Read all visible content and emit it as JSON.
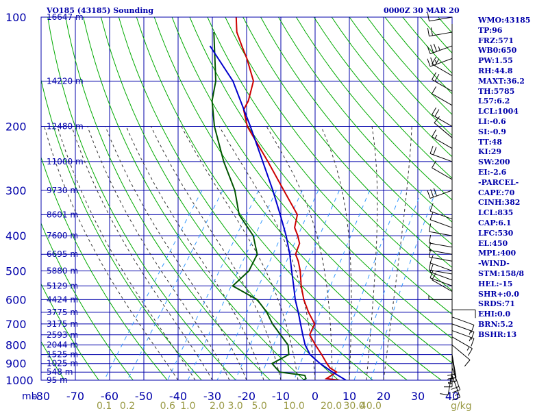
{
  "header": {
    "title": "VO185 (43185) Sounding",
    "datetime": "0000Z 30 MAR 20"
  },
  "indices": [
    "WMO:43185",
    "TP:96",
    "FRZ:571",
    "WB0:650",
    "PW:1.55",
    "RH:44.8",
    "MAXT:36.2",
    "TH:5785",
    "L57:6.2",
    "LCL:1004",
    "LI:-0.6",
    "SI:-0.9",
    "TT:48",
    "KI:29",
    "SW:200",
    "EI:-2.6",
    "-PARCEL-",
    "CAPE:70",
    "CINH:382",
    "LCL:835",
    "CAP:6.1",
    "LFC:530",
    "EL:450",
    "MPL:400",
    "-WIND-",
    "STM:158/8",
    "HEL:-15",
    "SHR+:0.0",
    "SRDS:71",
    "EHI:0.0",
    "BRN:5.2",
    "BSHR:13"
  ],
  "colors": {
    "axis": "#0000aa",
    "isotherm": "#0000aa",
    "dry_adiabat": "#00aa00",
    "moist_adiabat": "#333333",
    "mixing_ratio": "#3399ff",
    "temperature": "#cc0000",
    "dewpoint": "#005500",
    "parcel": "#0000cc",
    "wind": "#000000",
    "mixing_label": "#999944"
  },
  "chart_data": {
    "type": "skew-t",
    "title": "VO185 (43185) Sounding",
    "x_axis_unit": "°C",
    "y_axis_unit": "mb",
    "y_scale": "log",
    "ylim": [
      1000,
      100
    ],
    "xlim": [
      -80,
      40
    ],
    "pressure_ticks": [
      {
        "value": 100,
        "label": "100"
      },
      {
        "value": 200,
        "label": "200"
      },
      {
        "value": 300,
        "label": "300"
      },
      {
        "value": 400,
        "label": "400"
      },
      {
        "value": 500,
        "label": "500"
      },
      {
        "value": 600,
        "label": "600"
      },
      {
        "value": 700,
        "label": "700"
      },
      {
        "value": 800,
        "label": "800"
      },
      {
        "value": 900,
        "label": "900"
      },
      {
        "value": 1000,
        "label": "1000"
      }
    ],
    "temperature_ticks": [
      "-80",
      "-70",
      "-60",
      "-50",
      "-40",
      "-30",
      "-20",
      "-10",
      "0",
      "10",
      "20",
      "30",
      "40"
    ],
    "mixing_ratio_ticks": [
      {
        "value": 0.1,
        "label": "0.1"
      },
      {
        "value": 0.2,
        "label": "0.2"
      },
      {
        "value": 0.6,
        "label": "0.6"
      },
      {
        "value": 1.0,
        "label": "1.0"
      },
      {
        "value": 2.0,
        "label": "2.0"
      },
      {
        "value": 3.0,
        "label": "3.0"
      },
      {
        "value": 5.0,
        "label": "5.0"
      },
      {
        "value": 10.0,
        "label": "10.0"
      },
      {
        "value": 20.0,
        "label": "20.0"
      },
      {
        "value": 30.0,
        "label": "30.0"
      },
      {
        "value": 40.0,
        "label": "40.0"
      }
    ],
    "mixing_ratio_unit": "g/kg",
    "heights": [
      {
        "p": 100,
        "label": "16647 m"
      },
      {
        "p": 150,
        "label": "14220 m"
      },
      {
        "p": 200,
        "label": "12480 m"
      },
      {
        "p": 250,
        "label": "11000 m"
      },
      {
        "p": 300,
        "label": "9730 m"
      },
      {
        "p": 350,
        "label": "8601 m"
      },
      {
        "p": 400,
        "label": "7600 m"
      },
      {
        "p": 450,
        "label": "6695 m"
      },
      {
        "p": 500,
        "label": "5880 m"
      },
      {
        "p": 550,
        "label": "5129 m"
      },
      {
        "p": 600,
        "label": "4424 m"
      },
      {
        "p": 650,
        "label": "3775 m"
      },
      {
        "p": 700,
        "label": "3175 m"
      },
      {
        "p": 750,
        "label": "2593 m"
      },
      {
        "p": 800,
        "label": "2044 m"
      },
      {
        "p": 850,
        "label": "1525 m"
      },
      {
        "p": 900,
        "label": "1025 m"
      },
      {
        "p": 950,
        "label": "548 m"
      },
      {
        "p": 1000,
        "label": "95 m"
      }
    ],
    "series": [
      {
        "name": "temperature",
        "p": [
          1000,
          990,
          970,
          950,
          925,
          900,
          850,
          800,
          750,
          700,
          650,
          600,
          550,
          500,
          470,
          450,
          420,
          400,
          380,
          350,
          300,
          250,
          200,
          180,
          170,
          150,
          130,
          120,
          110,
          100
        ],
        "t": [
          27.1,
          23,
          23.8,
          24.6,
          21.8,
          20,
          16.6,
          12.8,
          9,
          8.2,
          4,
          0,
          -3.6,
          -7,
          -9.6,
          -11.8,
          -12.9,
          -15,
          -17.6,
          -19.5,
          -28.5,
          -39.1,
          -52.4,
          -56.9,
          -57.4,
          -60,
          -66.6,
          -70.7,
          -75,
          -78.3
        ]
      },
      {
        "name": "dewpoint",
        "p": [
          1000,
          990,
          970,
          950,
          925,
          900,
          850,
          800,
          700,
          650,
          600,
          550,
          500,
          450,
          400,
          350,
          300,
          250,
          200,
          170,
          150,
          110
        ],
        "t": [
          16.5,
          17,
          16,
          8,
          6,
          4,
          7,
          4.8,
          -4.1,
          -8.2,
          -13.6,
          -23.6,
          -22,
          -23,
          -28,
          -36.5,
          -42.8,
          -52,
          -62,
          -68,
          -71,
          -81.7
        ]
      },
      {
        "name": "parcel",
        "p": [
          1000,
          950,
          900,
          850,
          800,
          750,
          700,
          650,
          600,
          550,
          500,
          450,
          400,
          350,
          300,
          250,
          200,
          150,
          120
        ],
        "t": [
          29,
          23.4,
          18,
          13.2,
          9.8,
          7,
          4.1,
          1,
          -2.5,
          -5.8,
          -9.5,
          -13.5,
          -18.4,
          -24.5,
          -31.7,
          -40.6,
          -51.5,
          -66,
          -80
        ]
      }
    ],
    "wind": [
      {
        "p": 1000,
        "dir": 0,
        "spd": 0
      },
      {
        "p": 970,
        "dir": 160,
        "spd": 15
      },
      {
        "p": 950,
        "dir": 190,
        "spd": 10
      },
      {
        "p": 925,
        "dir": 160,
        "spd": 20
      },
      {
        "p": 900,
        "dir": 180,
        "spd": 15
      },
      {
        "p": 870,
        "dir": 170,
        "spd": 20
      },
      {
        "p": 850,
        "dir": 170,
        "spd": 20
      },
      {
        "p": 800,
        "dir": 130,
        "spd": 10
      },
      {
        "p": 760,
        "dir": 120,
        "spd": 15
      },
      {
        "p": 730,
        "dir": 110,
        "spd": 15
      },
      {
        "p": 700,
        "dir": 110,
        "spd": 15
      },
      {
        "p": 670,
        "dir": 110,
        "spd": 10
      },
      {
        "p": 640,
        "dir": 90,
        "spd": 10
      },
      {
        "p": 600,
        "dir": 270,
        "spd": 5
      },
      {
        "p": 570,
        "dir": 300,
        "spd": 10
      },
      {
        "p": 550,
        "dir": 290,
        "spd": 10
      },
      {
        "p": 530,
        "dir": 290,
        "spd": 10
      },
      {
        "p": 510,
        "dir": 280,
        "spd": 10
      },
      {
        "p": 500,
        "dir": 290,
        "spd": 10
      },
      {
        "p": 470,
        "dir": 280,
        "spd": 10
      },
      {
        "p": 450,
        "dir": 280,
        "spd": 10
      },
      {
        "p": 430,
        "dir": 280,
        "spd": 10
      },
      {
        "p": 400,
        "dir": 280,
        "spd": 10
      },
      {
        "p": 380,
        "dir": 290,
        "spd": 10
      },
      {
        "p": 360,
        "dir": 290,
        "spd": 10
      },
      {
        "p": 300,
        "dir": 250,
        "spd": 30
      },
      {
        "p": 280,
        "dir": 300,
        "spd": 10
      },
      {
        "p": 250,
        "dir": 290,
        "spd": 20
      },
      {
        "p": 230,
        "dir": 300,
        "spd": 15
      },
      {
        "p": 215,
        "dir": 310,
        "spd": 10
      },
      {
        "p": 200,
        "dir": 300,
        "spd": 20
      },
      {
        "p": 175,
        "dir": 300,
        "spd": 10
      },
      {
        "p": 160,
        "dir": 300,
        "spd": 20
      },
      {
        "p": 145,
        "dir": 300,
        "spd": 20
      },
      {
        "p": 130,
        "dir": 250,
        "spd": 25
      },
      {
        "p": 120,
        "dir": 250,
        "spd": 35
      },
      {
        "p": 110,
        "dir": 260,
        "spd": 20
      },
      {
        "p": 100,
        "dir": 260,
        "spd": 10
      }
    ],
    "legend": "none",
    "grid": true
  }
}
